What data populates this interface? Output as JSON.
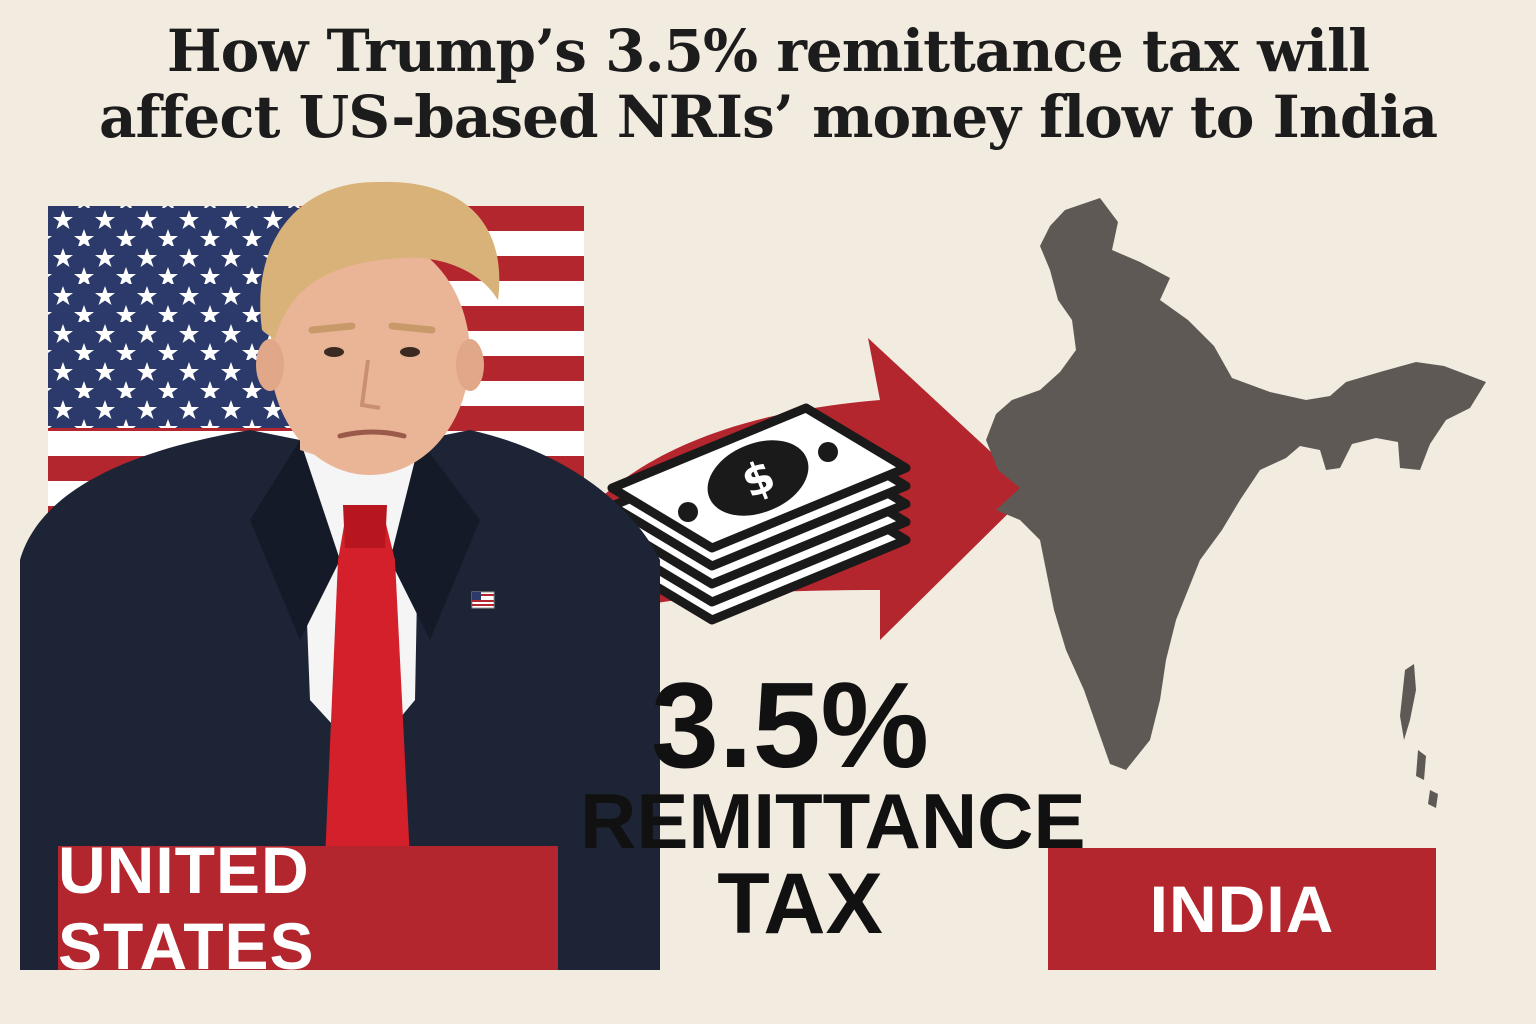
{
  "headline": {
    "line1": "How Trump’s 3.5% remittance tax will",
    "line2": "affect US-based NRIs’ money flow to India"
  },
  "labels": {
    "origin": "UNITED STATES",
    "destination": "INDIA"
  },
  "tax": {
    "rate": "3.5%",
    "word1": "REMITTANCE",
    "word2": "TAX"
  },
  "icons": {
    "flag": "us-flag-icon",
    "money": "cash-stack-icon",
    "arrow": "curved-arrow-icon",
    "map": "india-map-icon",
    "portrait": "person-portrait"
  },
  "colors": {
    "background": "#f2ebe0",
    "accent_red": "#b4262d",
    "map_gray": "#5f5955",
    "flag_blue": "#2b3a6b",
    "suit": "#1d2435",
    "tie": "#d3202b"
  }
}
